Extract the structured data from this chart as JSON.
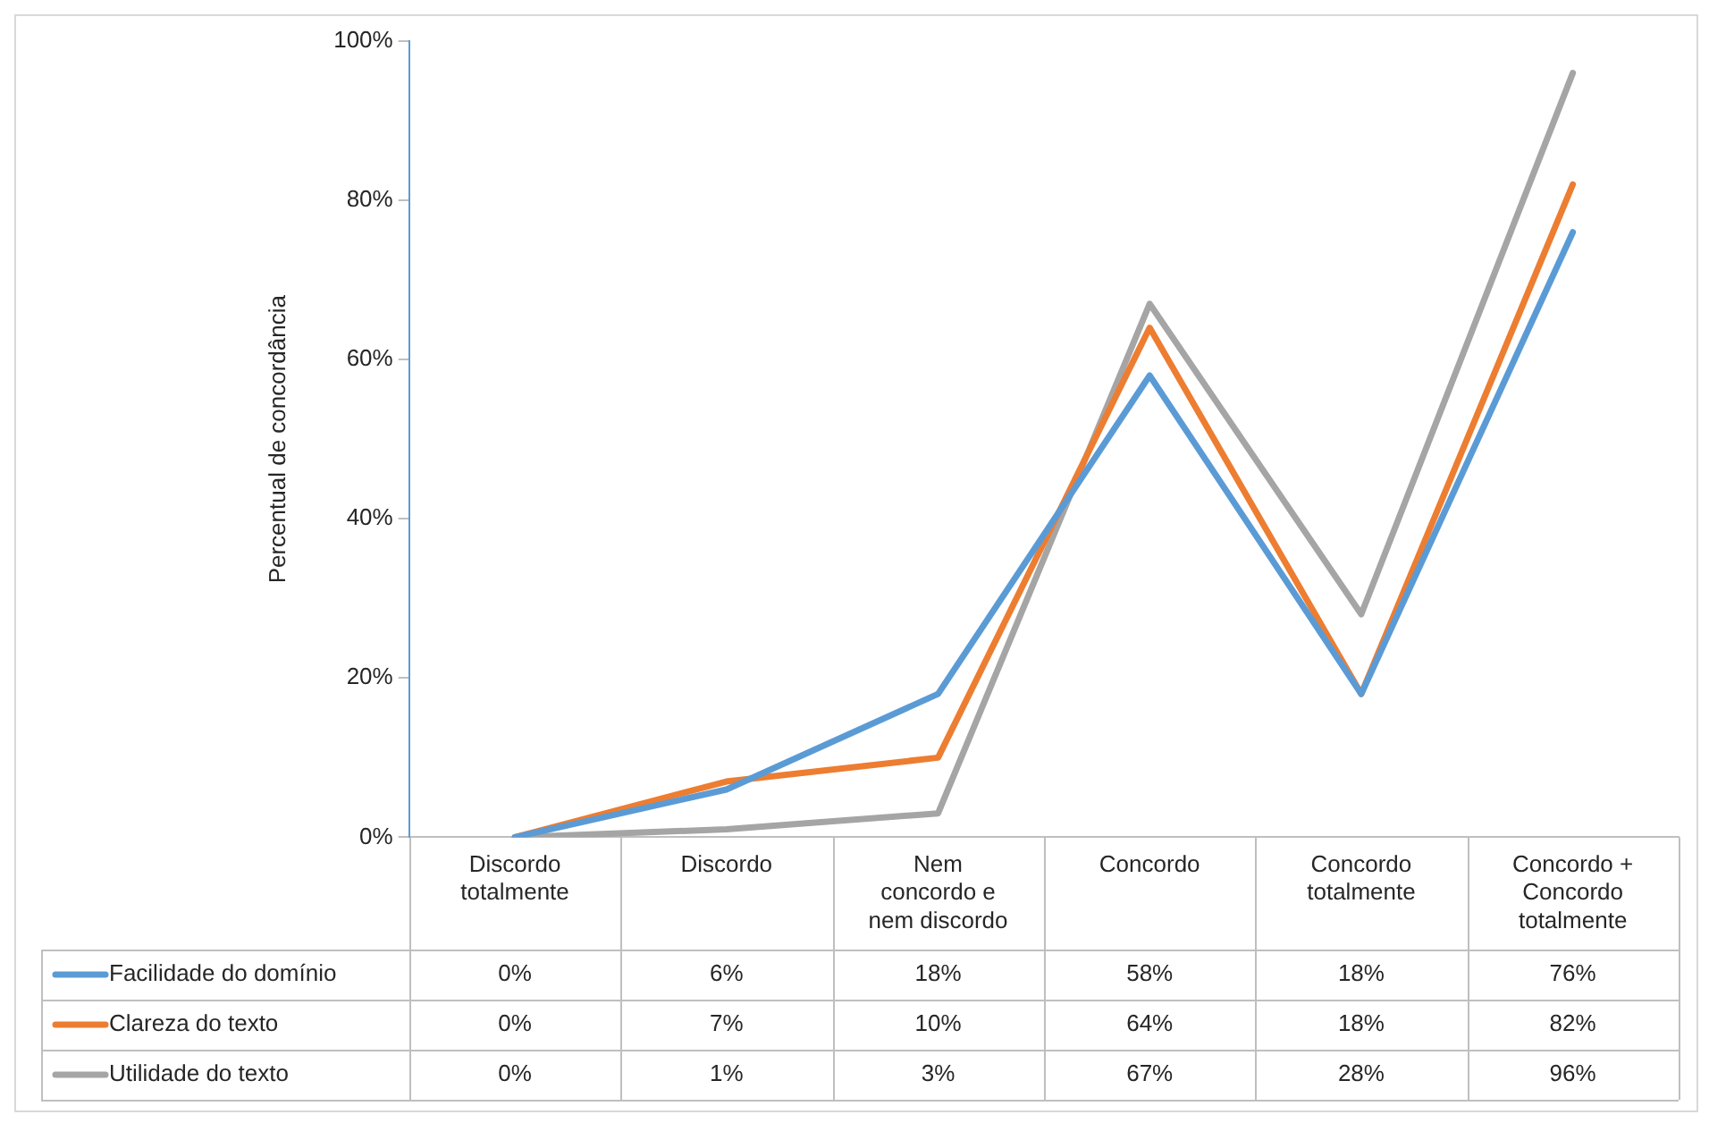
{
  "chart_data": {
    "type": "line",
    "categories": [
      "Discordo totalmente",
      "Discordo",
      "Nem concordo e nem discordo",
      "Concordo",
      "Concordo totalmente",
      "Concordo + Concordo totalmente"
    ],
    "series": [
      {
        "name": "Facilidade do domínio",
        "color": "#5b9bd5",
        "values": [
          0,
          6,
          18,
          58,
          18,
          76
        ],
        "value_labels": [
          "0%",
          "6%",
          "18%",
          "58%",
          "18%",
          "76%"
        ]
      },
      {
        "name": "Clareza do texto",
        "color": "#ed7d31",
        "values": [
          0,
          7,
          10,
          64,
          18,
          82
        ],
        "value_labels": [
          "0%",
          "7%",
          "10%",
          "64%",
          "18%",
          "82%"
        ]
      },
      {
        "name": "Utilidade do texto",
        "color": "#a5a5a5",
        "values": [
          0,
          1,
          3,
          67,
          28,
          96
        ],
        "value_labels": [
          "0%",
          "1%",
          "3%",
          "67%",
          "28%",
          "96%"
        ]
      }
    ],
    "ylabel": "Percentual de concordância",
    "ylim": [
      0,
      100
    ],
    "yticks": [
      {
        "value": 0,
        "label": "0%"
      },
      {
        "value": 20,
        "label": "20%"
      },
      {
        "value": 40,
        "label": "40%"
      },
      {
        "value": 60,
        "label": "60%"
      },
      {
        "value": 80,
        "label": "80%"
      },
      {
        "value": 100,
        "label": "100%"
      }
    ],
    "legend": "bottom",
    "grid": false,
    "marker": "none"
  }
}
